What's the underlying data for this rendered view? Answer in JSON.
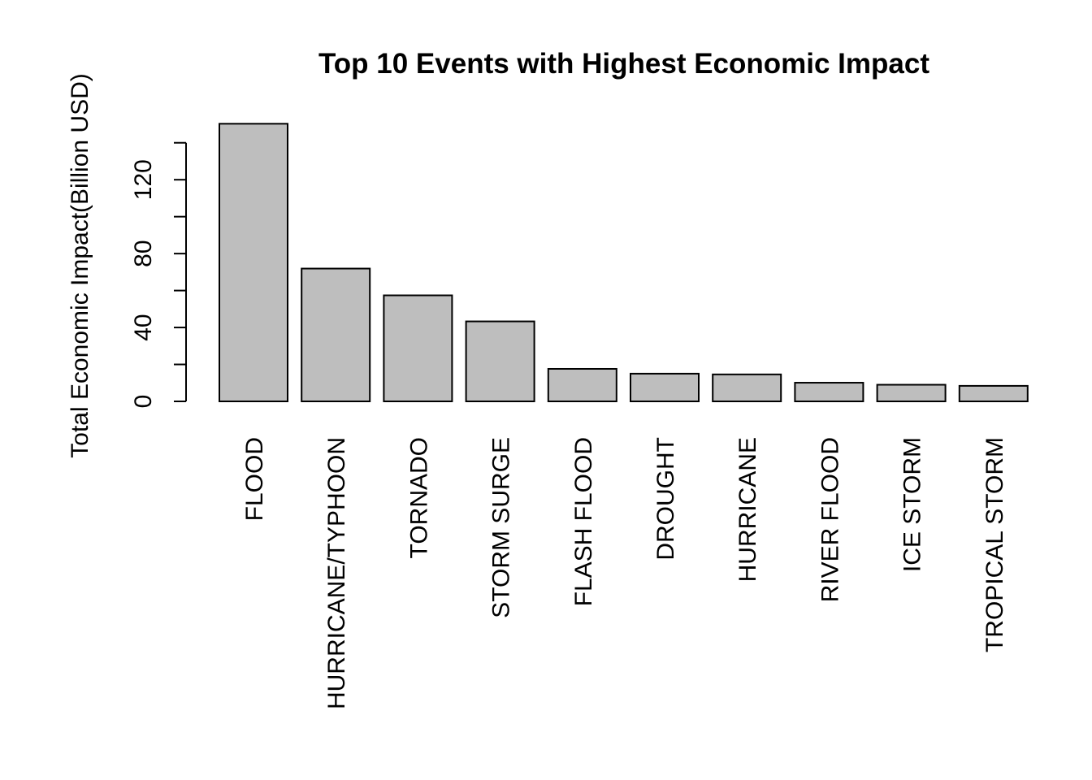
{
  "chart_data": {
    "type": "bar",
    "title": "Top 10 Events with Highest Economic Impact",
    "xlabel": "",
    "ylabel": "Total Economic Impact(Billion USD)",
    "ylim": [
      0,
      150
    ],
    "y_ticks_labeled": [
      0,
      40,
      80,
      120
    ],
    "y_ticks_minor": [
      20,
      60,
      100,
      140
    ],
    "grid": false,
    "categories": [
      "FLOOD",
      "HURRICANE/TYPHOON",
      "TORNADO",
      "STORM SURGE",
      "FLASH FLOOD",
      "DROUGHT",
      "HURRICANE",
      "RIVER FLOOD",
      "ICE STORM",
      "TROPICAL STORM"
    ],
    "values": [
      150.3,
      71.9,
      57.4,
      43.3,
      17.6,
      15.0,
      14.6,
      10.1,
      9.0,
      8.4
    ],
    "colors": {
      "bar_fill": "#bebebe",
      "bar_stroke": "#000000"
    }
  }
}
